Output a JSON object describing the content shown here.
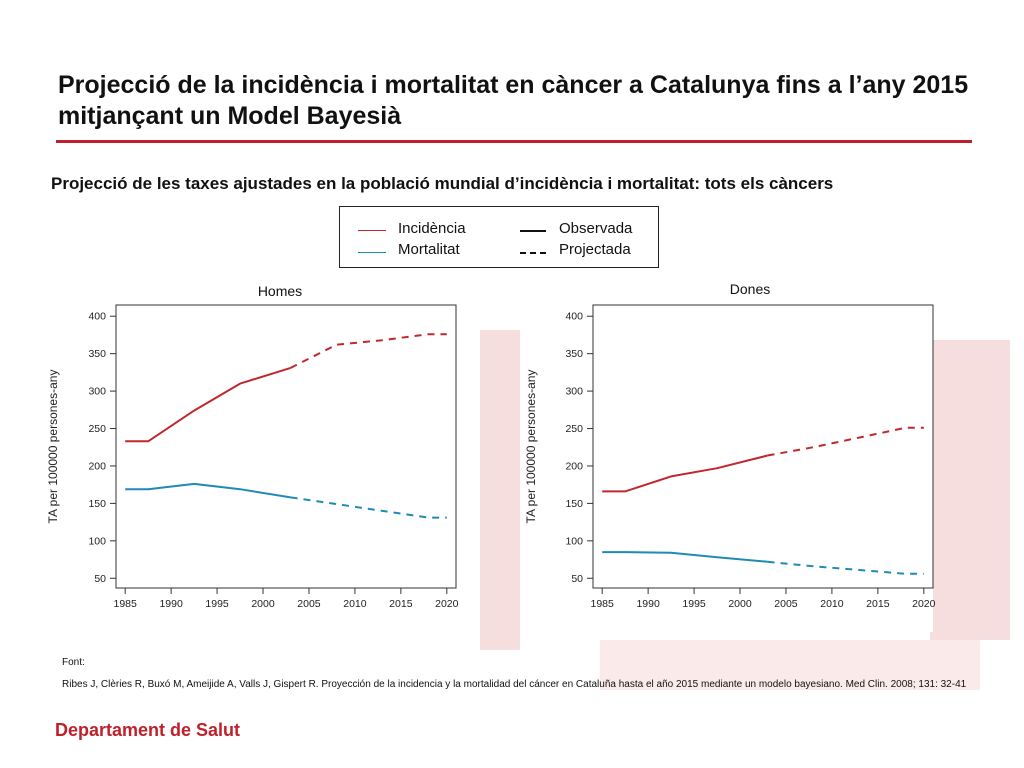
{
  "title": "Projecció de la incidència i mortalitat en càncer a Catalunya fins a l’any 2015 mitjançant un Model Bayesià",
  "subtitle": "Projecció de les taxes ajustades en la població mundial d’incidència i mortalitat: tots els càncers",
  "legend": {
    "incidence": "Incidència",
    "mortality": "Mortalitat",
    "observed": "Observada",
    "projected": "Projectada"
  },
  "colors": {
    "accent": "#c0202b",
    "incidence": "#c0282d",
    "mortality": "#1f8bb5"
  },
  "chart_data": [
    {
      "type": "line",
      "title": "Homes",
      "xlabel": "",
      "ylabel": "TA per 100000 persones-any",
      "xlim": [
        1984,
        2021
      ],
      "ylim": [
        37,
        415
      ],
      "xticks": [
        1985,
        1990,
        1995,
        2000,
        2005,
        2010,
        2015,
        2020
      ],
      "yticks": [
        50,
        100,
        150,
        200,
        250,
        300,
        350,
        400
      ],
      "series": [
        {
          "name": "Incidència",
          "style": "observed",
          "x": [
            1985,
            1987.5,
            1992.5,
            1997.5,
            2003
          ],
          "y": [
            233,
            233,
            274,
            310,
            331
          ]
        },
        {
          "name": "Incidència",
          "style": "projected",
          "x": [
            2003,
            2008,
            2013,
            2018,
            2020
          ],
          "y": [
            331,
            362,
            368,
            376,
            376
          ]
        },
        {
          "name": "Mortalitat",
          "style": "observed",
          "x": [
            1985,
            1987.5,
            1992.5,
            1997.5,
            2003
          ],
          "y": [
            169,
            169,
            176,
            169,
            158
          ]
        },
        {
          "name": "Mortalitat",
          "style": "projected",
          "x": [
            2003,
            2008,
            2013,
            2018,
            2020
          ],
          "y": [
            158,
            149,
            140,
            131,
            131
          ]
        }
      ]
    },
    {
      "type": "line",
      "title": "Dones",
      "xlabel": "",
      "ylabel": "TA per 100000 persones-any",
      "xlim": [
        1984,
        2021
      ],
      "ylim": [
        37,
        415
      ],
      "xticks": [
        1985,
        1990,
        1995,
        2000,
        2005,
        2010,
        2015,
        2020
      ],
      "yticks": [
        50,
        100,
        150,
        200,
        250,
        300,
        350,
        400
      ],
      "series": [
        {
          "name": "Incidència",
          "style": "observed",
          "x": [
            1985,
            1987.5,
            1992.5,
            1997.5,
            2003
          ],
          "y": [
            166,
            166,
            186,
            197,
            214
          ]
        },
        {
          "name": "Incidència",
          "style": "projected",
          "x": [
            2003,
            2008,
            2013,
            2018,
            2020
          ],
          "y": [
            214,
            225,
            238,
            251,
            251
          ]
        },
        {
          "name": "Mortalitat",
          "style": "observed",
          "x": [
            1985,
            1987.5,
            1992.5,
            1997.5,
            2003
          ],
          "y": [
            85,
            85,
            84,
            78,
            72
          ]
        },
        {
          "name": "Mortalitat",
          "style": "projected",
          "x": [
            2003,
            2008,
            2013,
            2018,
            2020
          ],
          "y": [
            72,
            66,
            61,
            56,
            56
          ]
        }
      ]
    }
  ],
  "source": {
    "label": "Font:",
    "citation": "Ribes J, Clèries R, Buxó M, Ameijide A, Valls J, Gispert R. Proyección de la incidencia y la mortalidad del cáncer en Cataluña hasta el año 2015 mediante un modelo bayesiano. Med Clin. 2008; 131: 32-41"
  },
  "footer": "Departament de Salut"
}
